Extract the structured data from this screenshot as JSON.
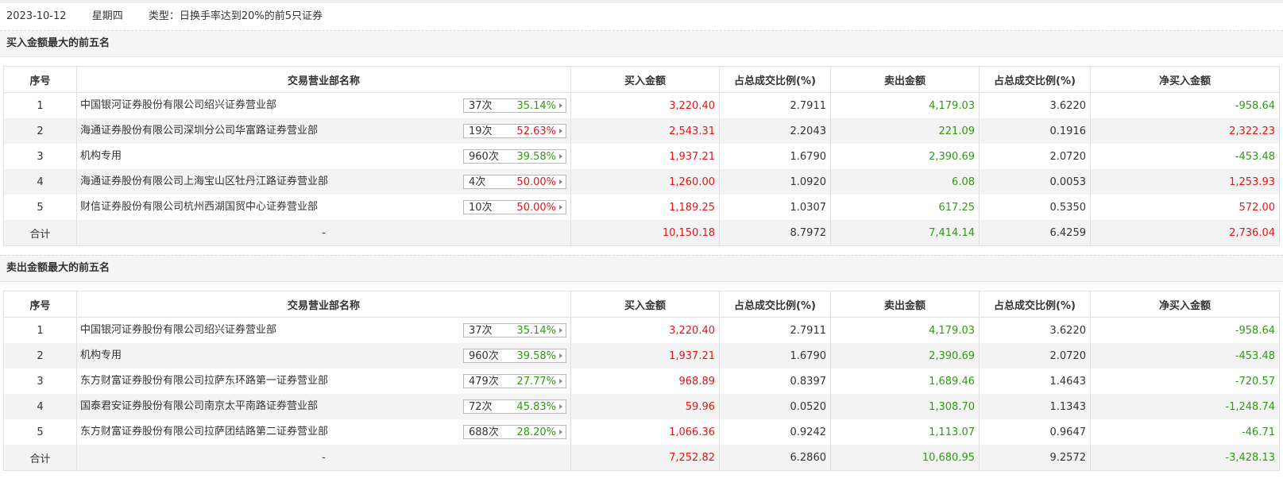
{
  "header": {
    "date": "2023-10-12",
    "weekday": "星期四",
    "type_label": "类型：",
    "type_value": "日换手率达到20%的前5只证券"
  },
  "colors": {
    "up": "#e4151a",
    "down": "#2f9a12",
    "row_alt": "#f3f3f3"
  },
  "columns": [
    "序号",
    "交易营业部名称",
    "买入金额",
    "占总成交比例(%)",
    "卖出金额",
    "占总成交比例(%)",
    "净买入金额"
  ],
  "buy_table": {
    "title": "买入金额最大的前五名",
    "rows": [
      {
        "idx": "1",
        "name": "中国银河证券股份有限公司绍兴证券营业部",
        "times": "37次",
        "rate": "35.14%",
        "rate_color": "down",
        "buy": "3,220.40",
        "buy_pct": "2.7911",
        "sell": "4,179.03",
        "sell_pct": "3.6220",
        "net": "-958.64",
        "net_color": "down"
      },
      {
        "idx": "2",
        "name": "海通证券股份有限公司深圳分公司华富路证券营业部",
        "times": "19次",
        "rate": "52.63%",
        "rate_color": "up",
        "buy": "2,543.31",
        "buy_pct": "2.2043",
        "sell": "221.09",
        "sell_pct": "0.1916",
        "net": "2,322.23",
        "net_color": "up"
      },
      {
        "idx": "3",
        "name": "机构专用",
        "times": "960次",
        "rate": "39.58%",
        "rate_color": "down",
        "buy": "1,937.21",
        "buy_pct": "1.6790",
        "sell": "2,390.69",
        "sell_pct": "2.0720",
        "net": "-453.48",
        "net_color": "down"
      },
      {
        "idx": "4",
        "name": "海通证券股份有限公司上海宝山区牡丹江路证券营业部",
        "times": "4次",
        "rate": "50.00%",
        "rate_color": "up",
        "buy": "1,260.00",
        "buy_pct": "1.0920",
        "sell": "6.08",
        "sell_pct": "0.0053",
        "net": "1,253.93",
        "net_color": "up"
      },
      {
        "idx": "5",
        "name": "财信证券股份有限公司杭州西湖国贸中心证券营业部",
        "times": "10次",
        "rate": "50.00%",
        "rate_color": "up",
        "buy": "1,189.25",
        "buy_pct": "1.0307",
        "sell": "617.25",
        "sell_pct": "0.5350",
        "net": "572.00",
        "net_color": "up"
      }
    ],
    "total": {
      "label": "合计",
      "name": "-",
      "buy": "10,150.18",
      "buy_pct": "8.7972",
      "sell": "7,414.14",
      "sell_pct": "6.4259",
      "net": "2,736.04",
      "net_color": "up"
    }
  },
  "sell_table": {
    "title": "卖出金额最大的前五名",
    "rows": [
      {
        "idx": "1",
        "name": "中国银河证券股份有限公司绍兴证券营业部",
        "times": "37次",
        "rate": "35.14%",
        "rate_color": "down",
        "buy": "3,220.40",
        "buy_pct": "2.7911",
        "sell": "4,179.03",
        "sell_pct": "3.6220",
        "net": "-958.64",
        "net_color": "down"
      },
      {
        "idx": "2",
        "name": "机构专用",
        "times": "960次",
        "rate": "39.58%",
        "rate_color": "down",
        "buy": "1,937.21",
        "buy_pct": "1.6790",
        "sell": "2,390.69",
        "sell_pct": "2.0720",
        "net": "-453.48",
        "net_color": "down"
      },
      {
        "idx": "3",
        "name": "东方财富证券股份有限公司拉萨东环路第一证券营业部",
        "times": "479次",
        "rate": "27.77%",
        "rate_color": "down",
        "buy": "968.89",
        "buy_pct": "0.8397",
        "sell": "1,689.46",
        "sell_pct": "1.4643",
        "net": "-720.57",
        "net_color": "down"
      },
      {
        "idx": "4",
        "name": "国泰君安证券股份有限公司南京太平南路证券营业部",
        "times": "72次",
        "rate": "45.83%",
        "rate_color": "down",
        "buy": "59.96",
        "buy_pct": "0.0520",
        "sell": "1,308.70",
        "sell_pct": "1.1343",
        "net": "-1,248.74",
        "net_color": "down"
      },
      {
        "idx": "5",
        "name": "东方财富证券股份有限公司拉萨团结路第二证券营业部",
        "times": "688次",
        "rate": "28.20%",
        "rate_color": "down",
        "buy": "1,066.36",
        "buy_pct": "0.9242",
        "sell": "1,113.07",
        "sell_pct": "0.9647",
        "net": "-46.71",
        "net_color": "down"
      }
    ],
    "total": {
      "label": "合计",
      "name": "-",
      "buy": "7,252.82",
      "buy_pct": "6.2860",
      "sell": "10,680.95",
      "sell_pct": "9.2572",
      "net": "-3,428.13",
      "net_color": "down"
    }
  }
}
